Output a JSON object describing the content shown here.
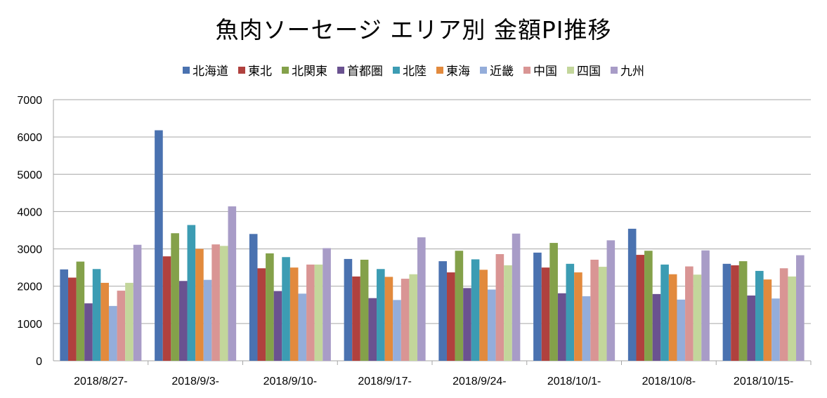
{
  "chart_data": {
    "type": "bar",
    "title": "魚肉ソーセージ エリア別 金額PI推移",
    "xlabel": "",
    "ylabel": "",
    "ylim": [
      0,
      7000
    ],
    "yticks": [
      0,
      1000,
      2000,
      3000,
      4000,
      5000,
      6000,
      7000
    ],
    "grid": true,
    "legend_position": "top",
    "categories": [
      "2018/8/27-",
      "2018/9/3-",
      "2018/9/10-",
      "2018/9/17-",
      "2018/9/24-",
      "2018/10/1-",
      "2018/10/8-",
      "2018/10/15-"
    ],
    "series": [
      {
        "name": "北海道",
        "color": "#4a72b0",
        "values": [
          2450,
          6180,
          3400,
          2730,
          2670,
          2900,
          3540,
          2600
        ]
      },
      {
        "name": "東北",
        "color": "#b0413e",
        "values": [
          2230,
          2800,
          2480,
          2260,
          2370,
          2500,
          2840,
          2560
        ]
      },
      {
        "name": "北関東",
        "color": "#84a14a",
        "values": [
          2660,
          3420,
          2880,
          2710,
          2950,
          3160,
          2950,
          2670
        ]
      },
      {
        "name": "首都圏",
        "color": "#6a5290",
        "values": [
          1540,
          2140,
          1870,
          1680,
          1950,
          1810,
          1790,
          1750
        ]
      },
      {
        "name": "北陸",
        "color": "#3c9cb3",
        "values": [
          2460,
          3640,
          2780,
          2460,
          2720,
          2600,
          2580,
          2410
        ]
      },
      {
        "name": "東海",
        "color": "#e28a3d",
        "values": [
          2090,
          3000,
          2500,
          2250,
          2440,
          2370,
          2320,
          2180
        ]
      },
      {
        "name": "近畿",
        "color": "#94adda",
        "values": [
          1470,
          2170,
          1800,
          1630,
          1910,
          1730,
          1640,
          1670
        ]
      },
      {
        "name": "中国",
        "color": "#d99594",
        "values": [
          1880,
          3120,
          2580,
          2200,
          2860,
          2710,
          2530,
          2480
        ]
      },
      {
        "name": "四国",
        "color": "#c3d69b",
        "values": [
          2090,
          3080,
          2580,
          2320,
          2560,
          2520,
          2310,
          2260
        ]
      },
      {
        "name": "九州",
        "color": "#a89cc7",
        "values": [
          3110,
          4140,
          3020,
          3310,
          3410,
          3230,
          2960,
          2830
        ]
      }
    ]
  }
}
